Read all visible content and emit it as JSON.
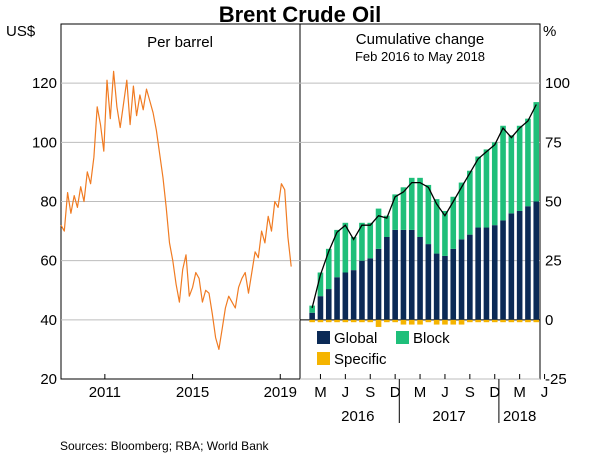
{
  "title": "Brent Crude Oil",
  "source": "Sources:  Bloomberg; RBA; World Bank",
  "colors": {
    "price_line": "#f07b22",
    "global": "#0b2a56",
    "block": "#1fbf7a",
    "specific": "#f5b400",
    "cumulative_line": "#000000",
    "grid": "#bdbdbd"
  },
  "chart_data": [
    {
      "type": "line",
      "panel": "left",
      "title": "Per barrel",
      "ylabel": "US$",
      "ylim": [
        20,
        140
      ],
      "yticks": [
        20,
        40,
        60,
        80,
        100,
        120
      ],
      "xlim": [
        2009.0,
        2019.9
      ],
      "xticks": [
        {
          "x": 2011,
          "label": "2011"
        },
        {
          "x": 2015,
          "label": "2015"
        },
        {
          "x": 2019,
          "label": "2019"
        }
      ],
      "series": [
        {
          "name": "Brent crude oil price",
          "x": [
            2009.0,
            2009.15,
            2009.3,
            2009.45,
            2009.6,
            2009.75,
            2009.9,
            2010.05,
            2010.2,
            2010.35,
            2010.5,
            2010.65,
            2010.8,
            2010.95,
            2011.1,
            2011.25,
            2011.4,
            2011.55,
            2011.7,
            2011.85,
            2012.0,
            2012.15,
            2012.3,
            2012.45,
            2012.6,
            2012.75,
            2012.9,
            2013.05,
            2013.2,
            2013.35,
            2013.5,
            2013.65,
            2013.8,
            2013.95,
            2014.1,
            2014.25,
            2014.4,
            2014.55,
            2014.7,
            2014.85,
            2015.0,
            2015.15,
            2015.3,
            2015.45,
            2015.6,
            2015.75,
            2015.9,
            2016.05,
            2016.2,
            2016.35,
            2016.5,
            2016.65,
            2016.8,
            2016.95,
            2017.1,
            2017.25,
            2017.4,
            2017.55,
            2017.7,
            2017.85,
            2018.0,
            2018.15,
            2018.3,
            2018.45,
            2018.6,
            2018.75,
            2018.9,
            2019.05,
            2019.2,
            2019.35,
            2019.5
          ],
          "values": [
            72,
            70,
            83,
            76,
            82,
            78,
            85,
            80,
            90,
            86,
            95,
            112,
            106,
            97,
            121,
            108,
            124,
            112,
            105,
            113,
            121,
            106,
            119,
            109,
            116,
            111,
            118,
            114,
            110,
            104,
            96,
            88,
            78,
            66,
            60,
            52,
            46,
            57,
            62,
            48,
            51,
            56,
            54,
            46,
            50,
            49,
            42,
            34,
            30,
            37,
            44,
            48,
            46,
            44,
            51,
            54,
            56,
            49,
            56,
            63,
            61,
            70,
            66,
            75,
            70,
            80,
            78,
            86,
            84,
            68,
            58
          ]
        }
      ]
    },
    {
      "type": "bar",
      "panel": "right",
      "title": "Cumulative change",
      "subtitle": "Feb 2016 to May 2018",
      "ylabel": "%",
      "ylim": [
        -25,
        125
      ],
      "yticks": [
        -25,
        0,
        25,
        50,
        75,
        100
      ],
      "stacked": true,
      "month_labels": [
        "M",
        "J",
        "S",
        "D",
        "M",
        "J",
        "S",
        "D",
        "M",
        "J"
      ],
      "year_labels": [
        "2016",
        "2017",
        "2018"
      ],
      "legend": [
        "Global",
        "Block",
        "Specific"
      ],
      "categories": [
        "2016-02",
        "2016-03",
        "2016-04",
        "2016-05",
        "2016-06",
        "2016-07",
        "2016-08",
        "2016-09",
        "2016-10",
        "2016-11",
        "2016-12",
        "2017-01",
        "2017-02",
        "2017-03",
        "2017-04",
        "2017-05",
        "2017-06",
        "2017-07",
        "2017-08",
        "2017-09",
        "2017-10",
        "2017-11",
        "2017-12",
        "2018-01",
        "2018-02",
        "2018-03",
        "2018-04",
        "2018-05"
      ],
      "series": [
        {
          "name": "Global",
          "values": [
            3,
            10,
            13,
            18,
            20,
            21,
            25,
            26,
            30,
            35,
            38,
            38,
            38,
            35,
            32,
            28,
            27,
            30,
            34,
            36,
            39,
            39,
            40,
            42,
            45,
            46,
            48,
            50
          ]
        },
        {
          "name": "Block",
          "values": [
            3,
            10,
            17,
            20,
            21,
            14,
            16,
            15,
            17,
            9,
            15,
            18,
            22,
            25,
            25,
            23,
            19,
            22,
            24,
            27,
            30,
            33,
            35,
            40,
            33,
            36,
            37,
            42
          ]
        },
        {
          "name": "Specific",
          "values": [
            -1,
            -1,
            -1,
            -1,
            -1,
            -1,
            -1,
            -1,
            -3,
            -1,
            -1,
            -2,
            -2,
            -2,
            -1,
            -2,
            -2,
            -2,
            -2,
            -1,
            -1,
            -1,
            -1,
            -1,
            -1,
            -1,
            -1,
            -1
          ]
        }
      ],
      "cumulative": [
        5,
        19,
        29,
        37,
        40,
        34,
        40,
        40,
        44,
        43,
        52,
        54,
        58,
        58,
        56,
        49,
        44,
        50,
        56,
        62,
        68,
        71,
        74,
        81,
        77,
        81,
        84,
        91
      ]
    }
  ]
}
